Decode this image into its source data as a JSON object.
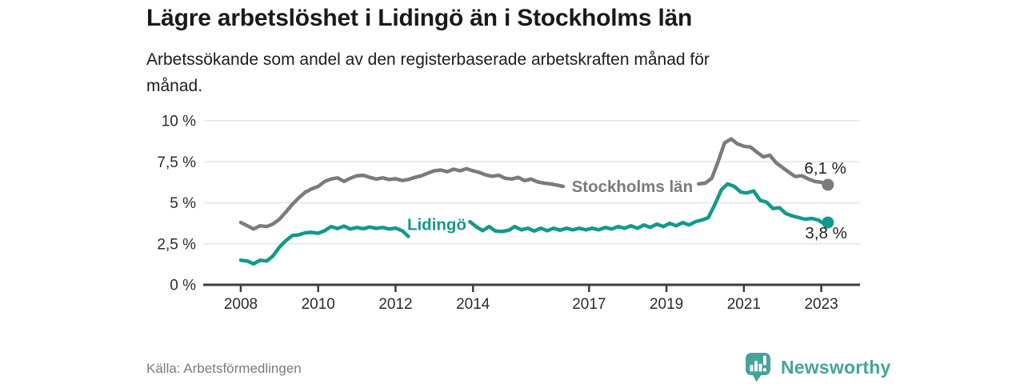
{
  "colors": {
    "lidingo_teal": "#13998b",
    "stockholm_gray": "#7b7a7f",
    "axis": "#3d3c40",
    "grid": "#e4e4e4",
    "tick_text": "#2b2b2b",
    "value_label_text": "#1f1f1f",
    "title_text": "#191919",
    "source_text": "#7c7b80",
    "brand_teal": "#44a49a"
  },
  "footer": {
    "source": "Källa: Arbetsförmedlingen",
    "brand": "Newsworthy"
  },
  "chart_data": {
    "type": "line",
    "title": "Lägre arbetslöshet i Lidingö än i Stockholms län",
    "subtitle_lines": [
      "Arbetssökande som andel av den registerbaserade arbetskraften månad för",
      "månad."
    ],
    "source": "Källa: Arbetsförmedlingen",
    "unit": "%",
    "grid": "horizontal-only",
    "legend": "inline-labels",
    "x_domain": [
      2007.05,
      2024.0
    ],
    "y_domain": [
      0,
      10
    ],
    "x_ticks": [
      {
        "v": 2008,
        "label": "2008"
      },
      {
        "v": 2010,
        "label": "2010"
      },
      {
        "v": 2012,
        "label": "2012"
      },
      {
        "v": 2014,
        "label": "2014"
      },
      {
        "v": 2017,
        "label": "2017"
      },
      {
        "v": 2019,
        "label": "2019"
      },
      {
        "v": 2021,
        "label": "2021"
      },
      {
        "v": 2023,
        "label": "2023"
      }
    ],
    "y_ticks": [
      {
        "v": 0,
        "label": "0 %"
      },
      {
        "v": 2.5,
        "label": "2,5 %"
      },
      {
        "v": 5,
        "label": "5 %"
      },
      {
        "v": 7.5,
        "label": "7,5 %"
      },
      {
        "v": 10,
        "label": "10 %"
      }
    ],
    "series": [
      {
        "name": "Stockholms län",
        "color": "#7b7a7f",
        "end_point": [
          2023.17,
          6.1
        ],
        "end_label": "6,1 %",
        "end_label_offset": [
          23,
          -14
        ],
        "inline_label": {
          "text": "Stockholms län",
          "x": 2016.55,
          "y": 5.66
        },
        "segments": [
          [
            [
              2008.0,
              3.8
            ],
            [
              2008.17,
              3.6
            ],
            [
              2008.33,
              3.4
            ],
            [
              2008.5,
              3.6
            ],
            [
              2008.67,
              3.55
            ],
            [
              2008.83,
              3.7
            ],
            [
              2009.0,
              4.0
            ],
            [
              2009.17,
              4.45
            ],
            [
              2009.33,
              4.9
            ],
            [
              2009.5,
              5.3
            ],
            [
              2009.67,
              5.65
            ],
            [
              2009.83,
              5.85
            ],
            [
              2010.0,
              6.0
            ],
            [
              2010.17,
              6.3
            ],
            [
              2010.33,
              6.45
            ],
            [
              2010.5,
              6.52
            ],
            [
              2010.67,
              6.3
            ],
            [
              2010.83,
              6.5
            ],
            [
              2011.0,
              6.65
            ],
            [
              2011.17,
              6.68
            ],
            [
              2011.33,
              6.55
            ],
            [
              2011.5,
              6.45
            ],
            [
              2011.67,
              6.52
            ],
            [
              2011.83,
              6.42
            ],
            [
              2012.0,
              6.47
            ],
            [
              2012.17,
              6.36
            ],
            [
              2012.33,
              6.42
            ],
            [
              2012.5,
              6.55
            ],
            [
              2012.67,
              6.65
            ],
            [
              2012.83,
              6.8
            ],
            [
              2013.0,
              6.95
            ],
            [
              2013.17,
              7.0
            ],
            [
              2013.33,
              6.9
            ],
            [
              2013.5,
              7.05
            ],
            [
              2013.67,
              6.95
            ],
            [
              2013.83,
              7.08
            ],
            [
              2014.0,
              6.95
            ],
            [
              2014.17,
              6.85
            ],
            [
              2014.33,
              6.7
            ],
            [
              2014.5,
              6.62
            ],
            [
              2014.67,
              6.68
            ],
            [
              2014.83,
              6.5
            ],
            [
              2015.0,
              6.45
            ],
            [
              2015.17,
              6.55
            ],
            [
              2015.33,
              6.35
            ],
            [
              2015.5,
              6.45
            ],
            [
              2015.67,
              6.28
            ],
            [
              2015.83,
              6.2
            ],
            [
              2016.0,
              6.15
            ],
            [
              2016.17,
              6.08
            ],
            [
              2016.33,
              6.0
            ]
          ],
          [
            [
              2019.83,
              6.15
            ],
            [
              2020.0,
              6.2
            ],
            [
              2020.17,
              6.5
            ],
            [
              2020.33,
              7.5
            ],
            [
              2020.5,
              8.65
            ],
            [
              2020.67,
              8.9
            ],
            [
              2020.83,
              8.6
            ],
            [
              2021.0,
              8.45
            ],
            [
              2021.17,
              8.4
            ],
            [
              2021.33,
              8.1
            ],
            [
              2021.5,
              7.8
            ],
            [
              2021.67,
              7.9
            ],
            [
              2021.83,
              7.45
            ],
            [
              2022.0,
              7.15
            ],
            [
              2022.17,
              6.85
            ],
            [
              2022.33,
              6.6
            ],
            [
              2022.5,
              6.65
            ],
            [
              2022.67,
              6.45
            ],
            [
              2022.83,
              6.3
            ],
            [
              2023.0,
              6.25
            ],
            [
              2023.17,
              6.1
            ]
          ]
        ]
      },
      {
        "name": "Lidingö",
        "color": "#13998b",
        "end_point": [
          2023.17,
          3.8
        ],
        "end_label": "3,8 %",
        "end_label_offset": [
          24,
          20
        ],
        "inline_label": {
          "text": "Lidingö",
          "x": 2012.3,
          "y": 3.35
        },
        "segments": [
          [
            [
              2008.0,
              1.5
            ],
            [
              2008.17,
              1.45
            ],
            [
              2008.33,
              1.28
            ],
            [
              2008.5,
              1.5
            ],
            [
              2008.67,
              1.45
            ],
            [
              2008.83,
              1.75
            ],
            [
              2009.0,
              2.3
            ],
            [
              2009.17,
              2.7
            ],
            [
              2009.33,
              3.0
            ],
            [
              2009.5,
              3.05
            ],
            [
              2009.67,
              3.17
            ],
            [
              2009.83,
              3.2
            ],
            [
              2010.0,
              3.14
            ],
            [
              2010.17,
              3.3
            ],
            [
              2010.33,
              3.55
            ],
            [
              2010.5,
              3.43
            ],
            [
              2010.67,
              3.58
            ],
            [
              2010.83,
              3.4
            ],
            [
              2011.0,
              3.5
            ],
            [
              2011.17,
              3.42
            ],
            [
              2011.33,
              3.52
            ],
            [
              2011.5,
              3.44
            ],
            [
              2011.67,
              3.5
            ],
            [
              2011.83,
              3.4
            ],
            [
              2012.0,
              3.46
            ],
            [
              2012.17,
              3.3
            ],
            [
              2012.33,
              2.95
            ]
          ],
          [
            [
              2013.92,
              3.85
            ],
            [
              2014.08,
              3.55
            ],
            [
              2014.25,
              3.3
            ],
            [
              2014.42,
              3.55
            ],
            [
              2014.58,
              3.28
            ],
            [
              2014.75,
              3.25
            ],
            [
              2014.92,
              3.32
            ],
            [
              2015.08,
              3.55
            ],
            [
              2015.25,
              3.35
            ],
            [
              2015.42,
              3.45
            ],
            [
              2015.58,
              3.28
            ],
            [
              2015.75,
              3.45
            ],
            [
              2015.92,
              3.3
            ],
            [
              2016.08,
              3.45
            ],
            [
              2016.25,
              3.33
            ],
            [
              2016.42,
              3.45
            ],
            [
              2016.58,
              3.35
            ],
            [
              2016.75,
              3.45
            ],
            [
              2016.92,
              3.35
            ],
            [
              2017.08,
              3.45
            ],
            [
              2017.25,
              3.35
            ],
            [
              2017.42,
              3.5
            ],
            [
              2017.58,
              3.4
            ],
            [
              2017.75,
              3.55
            ],
            [
              2017.92,
              3.45
            ],
            [
              2018.08,
              3.6
            ],
            [
              2018.25,
              3.45
            ],
            [
              2018.42,
              3.65
            ],
            [
              2018.58,
              3.5
            ],
            [
              2018.75,
              3.7
            ],
            [
              2018.92,
              3.55
            ],
            [
              2019.08,
              3.75
            ],
            [
              2019.25,
              3.6
            ],
            [
              2019.42,
              3.8
            ],
            [
              2019.58,
              3.65
            ],
            [
              2019.75,
              3.85
            ],
            [
              2019.92,
              3.95
            ],
            [
              2020.08,
              4.1
            ],
            [
              2020.25,
              4.9
            ],
            [
              2020.42,
              5.8
            ],
            [
              2020.58,
              6.15
            ],
            [
              2020.75,
              6.0
            ],
            [
              2020.92,
              5.65
            ],
            [
              2021.08,
              5.6
            ],
            [
              2021.25,
              5.72
            ],
            [
              2021.42,
              5.15
            ],
            [
              2021.58,
              5.05
            ],
            [
              2021.75,
              4.65
            ],
            [
              2021.92,
              4.7
            ],
            [
              2022.08,
              4.35
            ],
            [
              2022.25,
              4.2
            ],
            [
              2022.42,
              4.1
            ],
            [
              2022.58,
              4.0
            ],
            [
              2022.75,
              4.05
            ],
            [
              2022.92,
              3.95
            ],
            [
              2023.08,
              3.7
            ],
            [
              2023.17,
              3.8
            ]
          ]
        ]
      }
    ]
  }
}
